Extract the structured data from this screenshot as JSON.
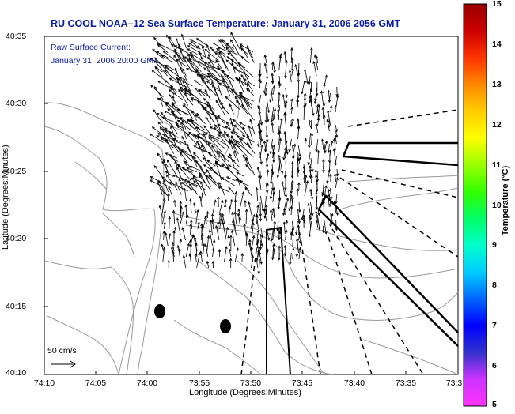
{
  "title": "RU COOL  NOAA–12  Sea Surface Temperature:  January 31, 2006 2056 GMT",
  "overlay": {
    "line1": "Raw Surface Current:",
    "line2": "January 31, 2006 20:00 GMT"
  },
  "scale": {
    "label": "50 cm/s"
  },
  "axes": {
    "xlabel": "Longitude (Degrees:Minutes)",
    "ylabel": "Latitude (Degrees:Minutes)",
    "xticks": [
      "74:10",
      "74:05",
      "74:00",
      "73:55",
      "73:50",
      "73:45",
      "73:40",
      "73:35",
      "73:3"
    ],
    "yticks": [
      "40:35",
      "40:30",
      "40:25",
      "40:20",
      "40:15",
      "40:10"
    ]
  },
  "colorbar": {
    "label": "Temperature (°C)",
    "ticks": [
      "15",
      "14",
      "13",
      "12",
      "11",
      "10",
      "9",
      "8",
      "7",
      "6",
      "5"
    ],
    "range": [
      5,
      15
    ],
    "colors": [
      "#ff33ff",
      "#cc33ff",
      "#3333cc",
      "#0000ff",
      "#0066ff",
      "#00ccff",
      "#00ffcc",
      "#00ff66",
      "#33ff00",
      "#99ff00",
      "#ffff00",
      "#ffcc00",
      "#ff8800",
      "#ff3300",
      "#cc0000",
      "#990000"
    ]
  }
}
